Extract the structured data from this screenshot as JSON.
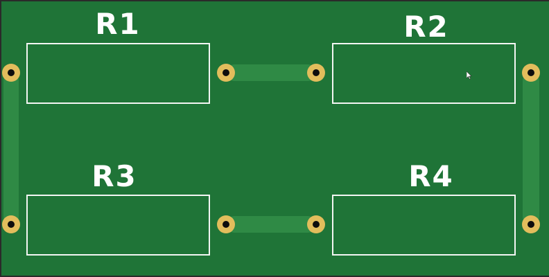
{
  "board": {
    "background": "#1f7437",
    "trace_color": "#2f8a45",
    "pad_color": "#e2bd5c",
    "silkscreen_color": "#f4f6f4"
  },
  "resistors": [
    {
      "id": "R1",
      "label": "R1"
    },
    {
      "id": "R2",
      "label": "R2"
    },
    {
      "id": "R3",
      "label": "R3"
    },
    {
      "id": "R4",
      "label": "R4"
    }
  ],
  "traces": [
    {
      "from": "R1",
      "to": "R2"
    },
    {
      "from": "R2",
      "to": "R4"
    },
    {
      "from": "R3",
      "to": "R4"
    },
    {
      "from": "R1",
      "to": "R3"
    }
  ],
  "cursor": {
    "icon": "mouse-pointer-icon"
  }
}
